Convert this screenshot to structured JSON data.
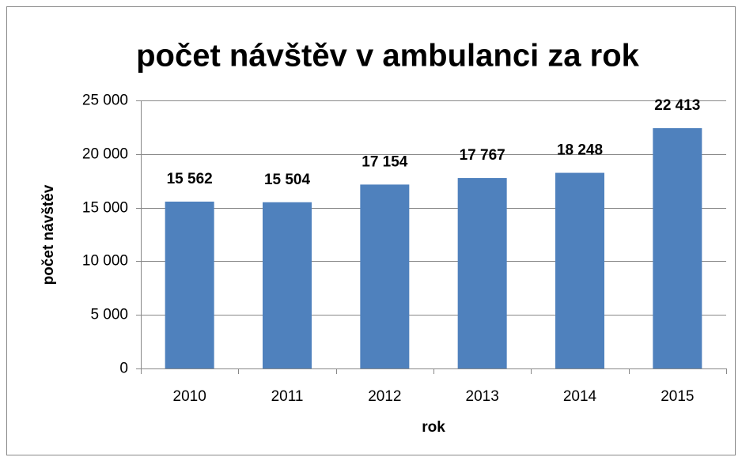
{
  "chart_data": {
    "type": "bar",
    "title": "počet návštěv v ambulanci za rok",
    "x_label": "rok",
    "y_label": "počet návštěv",
    "categories": [
      "2010",
      "2011",
      "2012",
      "2013",
      "2014",
      "2015"
    ],
    "values": [
      15562,
      15504,
      17154,
      17767,
      18248,
      22413
    ],
    "value_labels": [
      "15 562",
      "15 504",
      "17 154",
      "17 767",
      "18 248",
      "22 413"
    ],
    "color": "#4f81bd",
    "ylim": [
      0,
      25000
    ],
    "yticks": [
      0,
      {
        "value": 5000,
        "label": "5 000"
      },
      {
        "value": 10000,
        "label": "10 000"
      },
      {
        "value": 15000,
        "label": "15 000"
      },
      {
        "value": 20000,
        "label": "20 000"
      },
      {
        "value": 25000,
        "label": "25 000"
      }
    ],
    "grid": true
  }
}
